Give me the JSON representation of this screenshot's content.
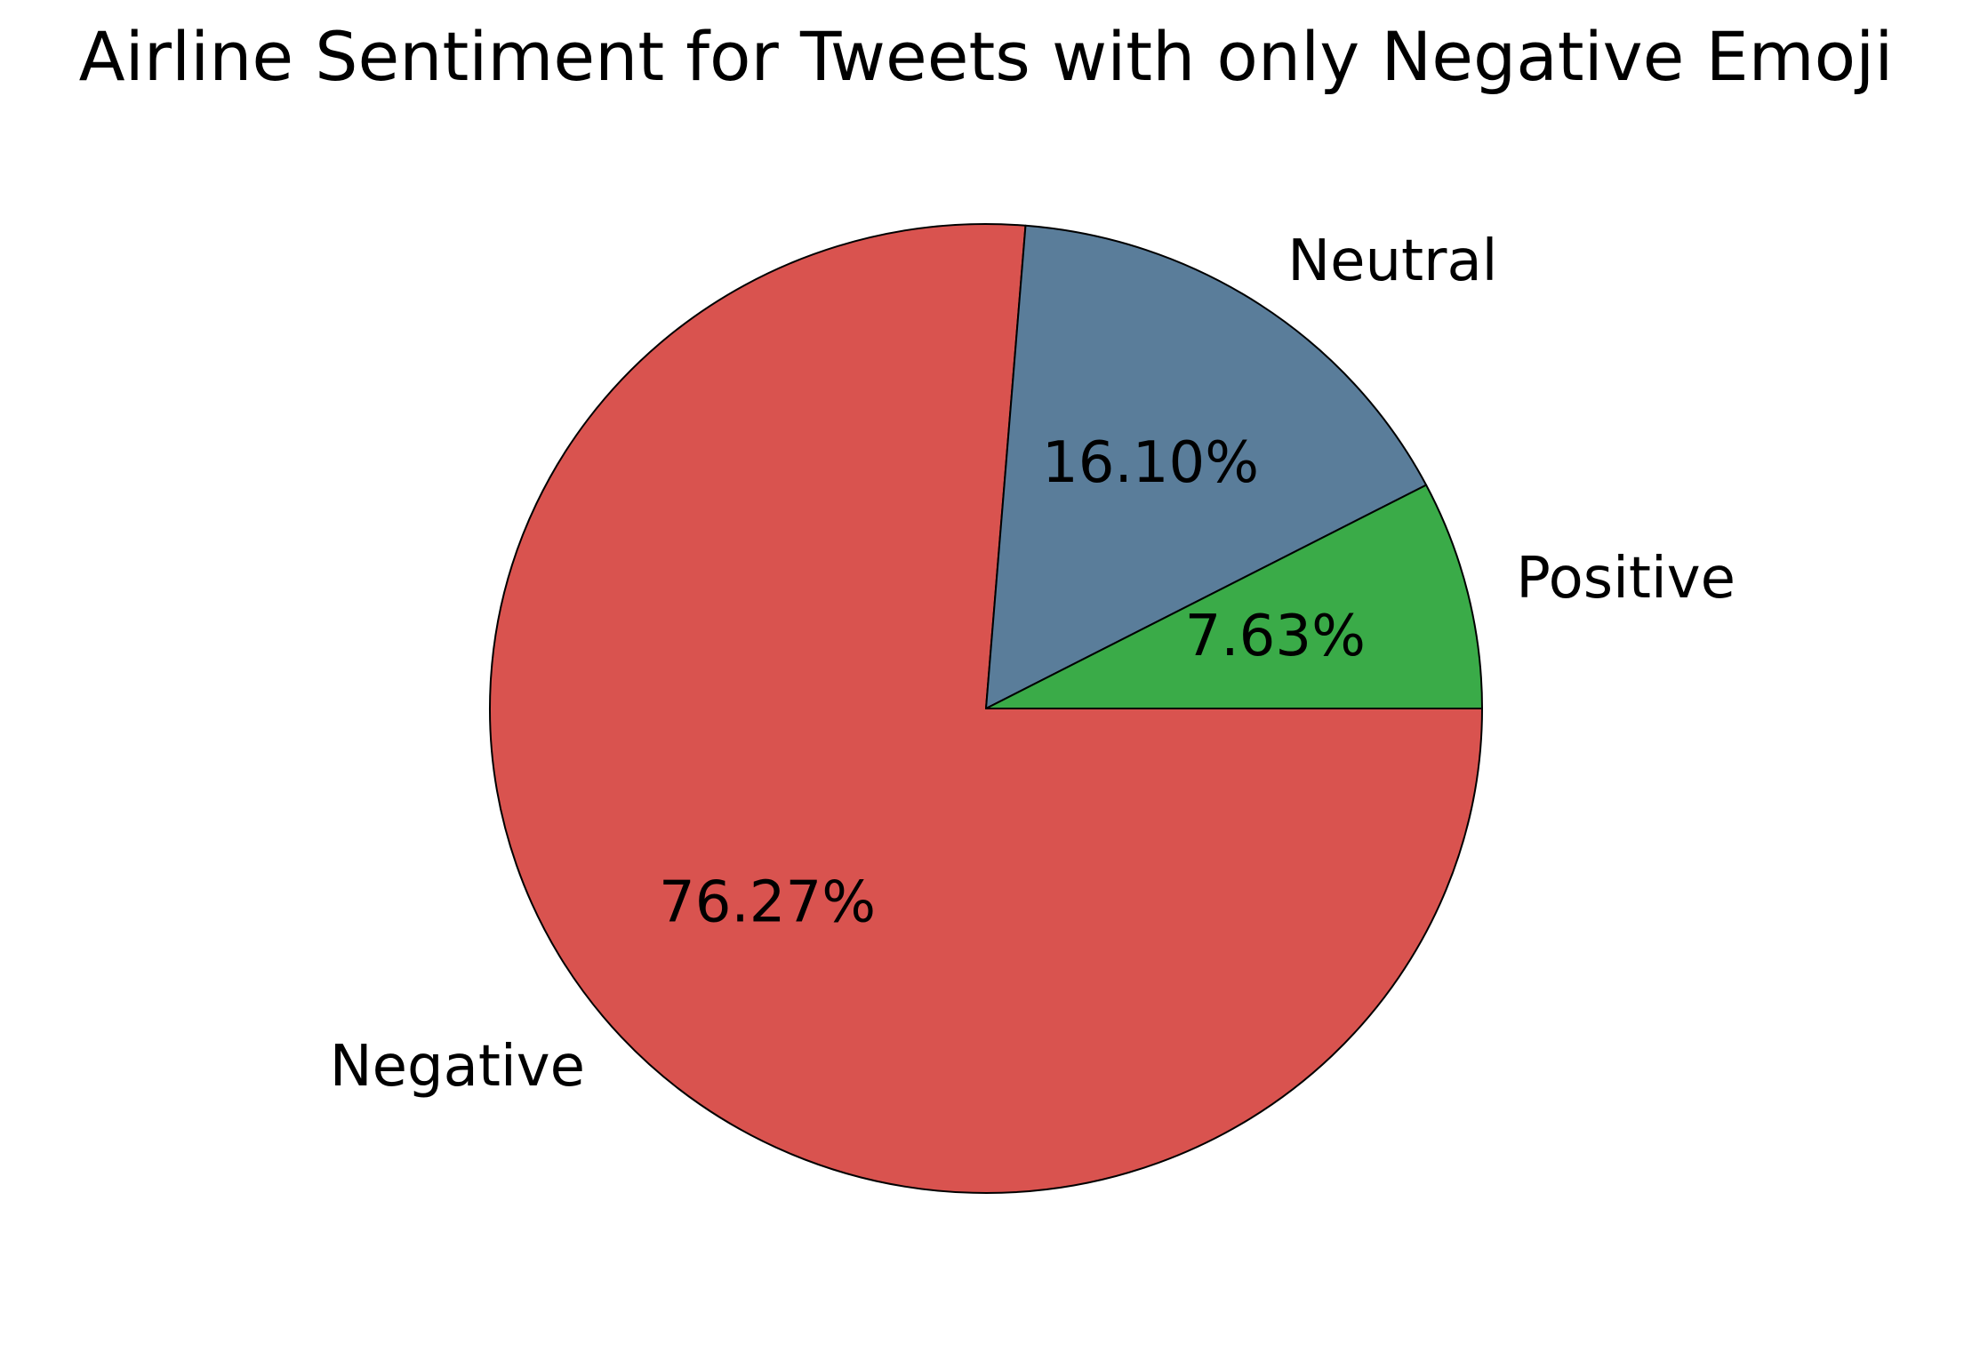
{
  "chart_data": {
    "type": "pie",
    "title": "Airline Sentiment for Tweets with only Negative Emoji",
    "slices": [
      {
        "label": "Negative",
        "value": 76.27,
        "pct_label": "76.27%",
        "color": "#d9534f"
      },
      {
        "label": "Neutral",
        "value": 16.1,
        "pct_label": "16.10%",
        "color": "#5a7d9a"
      },
      {
        "label": "Positive",
        "value": 7.63,
        "pct_label": "7.63%",
        "color": "#3aab48"
      }
    ],
    "start_angle_deg": 0,
    "direction": "clockwise",
    "edge_color": "#000000"
  }
}
